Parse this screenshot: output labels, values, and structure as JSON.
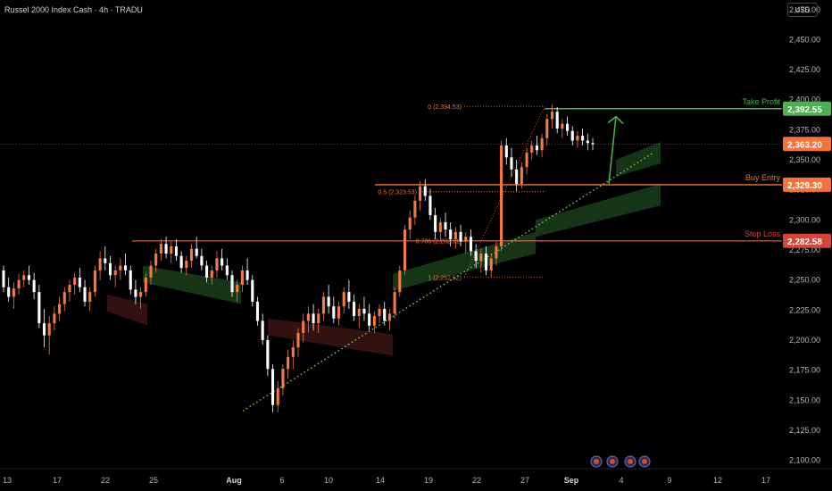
{
  "header": {
    "title": "Russel 2000 Index Cash · 4h · TRADU"
  },
  "currency_button": "USD",
  "colors": {
    "background": "#000000",
    "bull": "#f47b3f",
    "bear": "#ffffff",
    "take_profit": "#4caf50",
    "buy_entry": "#f0743b",
    "stop_loss": "#d5453a",
    "trendline": "#7fbf4f",
    "cloud_bull": "#1a3d1a",
    "cloud_bear": "#3b1414",
    "axis_text": "#b2b5be",
    "fib": "#f0743b"
  },
  "chart_data": {
    "type": "candlestick",
    "title": "Russel 2000 Index Cash · 4h · TRADU",
    "y_axis": {
      "ticks": [
        "2,475.00",
        "2,450.00",
        "2,425.00",
        "2,400.00",
        "2,375.00",
        "2,350.00",
        "2,325.00",
        "2,300.00",
        "2,275.00",
        "2,250.00",
        "2,225.00",
        "2,200.00",
        "2,175.00",
        "2,150.00",
        "2,125.00",
        "2,100.00"
      ],
      "tick_values": [
        2475,
        2450,
        2425,
        2400,
        2375,
        2350,
        2325,
        2300,
        2275,
        2250,
        2225,
        2200,
        2175,
        2150,
        2125,
        2100
      ],
      "range": [
        2093,
        2483
      ]
    },
    "x_axis": {
      "ticks": [
        "13",
        "17",
        "22",
        "25",
        "Aug",
        "6",
        "10",
        "14",
        "19",
        "22",
        "27",
        "Sep",
        "4",
        "9",
        "12",
        "17"
      ],
      "range_label_start": "Jul 13",
      "range_label_end": "Sep 17"
    },
    "key_levels": [
      {
        "name": "Take Profit",
        "value": 2392.55,
        "label": "2,392.55",
        "color": "#4caf50"
      },
      {
        "name": "Buy Entry",
        "value": 2329.3,
        "label": "2,329.30",
        "color": "#f0743b"
      },
      {
        "name": "Stop Loss",
        "value": 2282.58,
        "label": "2,282.58",
        "color": "#d5453a"
      }
    ],
    "current_price": {
      "value": 2363.2,
      "label": "2,363.20"
    },
    "fibonacci": [
      {
        "label": "0 (2,394.53)",
        "value": 2394.53
      },
      {
        "label": "0.5 (2,323.53)",
        "value": 2323.53
      },
      {
        "label": "0.786 (2,282.91)",
        "value": 2282.91
      },
      {
        "label": "1 (2,252.52)",
        "value": 2252.52
      }
    ],
    "trendline": {
      "from": {
        "date": "Aug 1",
        "value": 2141
      },
      "to": {
        "date": "Sep 5",
        "value": 2356
      }
    },
    "arrow": {
      "from": {
        "date": "Sep 2",
        "value": 2330
      },
      "to": {
        "date": "Sep 3",
        "value": 2386
      }
    },
    "candles": [
      [
        2258,
        2262,
        2240,
        2244
      ],
      [
        2244,
        2252,
        2232,
        2236
      ],
      [
        2236,
        2248,
        2226,
        2243
      ],
      [
        2243,
        2255,
        2238,
        2250
      ],
      [
        2250,
        2258,
        2244,
        2254
      ],
      [
        2254,
        2262,
        2246,
        2250
      ],
      [
        2250,
        2256,
        2234,
        2240
      ],
      [
        2240,
        2246,
        2210,
        2214
      ],
      [
        2214,
        2226,
        2194,
        2204
      ],
      [
        2204,
        2220,
        2188,
        2214
      ],
      [
        2214,
        2228,
        2208,
        2222
      ],
      [
        2222,
        2236,
        2216,
        2230
      ],
      [
        2230,
        2244,
        2224,
        2240
      ],
      [
        2240,
        2250,
        2232,
        2246
      ],
      [
        2246,
        2256,
        2238,
        2252
      ],
      [
        2252,
        2260,
        2240,
        2244
      ],
      [
        2244,
        2250,
        2228,
        2232
      ],
      [
        2232,
        2244,
        2224,
        2240
      ],
      [
        2240,
        2262,
        2236,
        2258
      ],
      [
        2258,
        2274,
        2250,
        2268
      ],
      [
        2268,
        2278,
        2258,
        2264
      ],
      [
        2264,
        2270,
        2250,
        2254
      ],
      [
        2254,
        2262,
        2244,
        2258
      ],
      [
        2258,
        2268,
        2250,
        2262
      ],
      [
        2262,
        2272,
        2254,
        2258
      ],
      [
        2258,
        2262,
        2238,
        2242
      ],
      [
        2242,
        2250,
        2230,
        2236
      ],
      [
        2236,
        2244,
        2226,
        2240
      ],
      [
        2240,
        2256,
        2236,
        2252
      ],
      [
        2252,
        2266,
        2246,
        2262
      ],
      [
        2262,
        2276,
        2256,
        2272
      ],
      [
        2272,
        2284,
        2266,
        2280
      ],
      [
        2280,
        2286,
        2268,
        2272
      ],
      [
        2272,
        2282,
        2264,
        2278
      ],
      [
        2278,
        2284,
        2266,
        2270
      ],
      [
        2270,
        2274,
        2256,
        2260
      ],
      [
        2260,
        2270,
        2254,
        2266
      ],
      [
        2266,
        2280,
        2260,
        2276
      ],
      [
        2276,
        2286,
        2268,
        2270
      ],
      [
        2270,
        2276,
        2258,
        2262
      ],
      [
        2262,
        2266,
        2248,
        2252
      ],
      [
        2252,
        2262,
        2246,
        2258
      ],
      [
        2258,
        2274,
        2252,
        2268
      ],
      [
        2268,
        2276,
        2258,
        2262
      ],
      [
        2262,
        2268,
        2250,
        2254
      ],
      [
        2254,
        2258,
        2236,
        2240
      ],
      [
        2240,
        2250,
        2232,
        2246
      ],
      [
        2246,
        2262,
        2240,
        2258
      ],
      [
        2258,
        2268,
        2246,
        2250
      ],
      [
        2250,
        2254,
        2228,
        2232
      ],
      [
        2232,
        2236,
        2212,
        2216
      ],
      [
        2216,
        2222,
        2196,
        2200
      ],
      [
        2200,
        2204,
        2170,
        2176
      ],
      [
        2176,
        2180,
        2140,
        2146
      ],
      [
        2146,
        2166,
        2140,
        2160
      ],
      [
        2160,
        2180,
        2154,
        2176
      ],
      [
        2176,
        2192,
        2168,
        2186
      ],
      [
        2186,
        2200,
        2176,
        2194
      ],
      [
        2194,
        2210,
        2186,
        2206
      ],
      [
        2206,
        2222,
        2198,
        2216
      ],
      [
        2216,
        2228,
        2206,
        2222
      ],
      [
        2222,
        2230,
        2208,
        2214
      ],
      [
        2214,
        2226,
        2206,
        2222
      ],
      [
        2222,
        2240,
        2216,
        2236
      ],
      [
        2236,
        2246,
        2222,
        2228
      ],
      [
        2228,
        2236,
        2214,
        2218
      ],
      [
        2218,
        2232,
        2212,
        2228
      ],
      [
        2228,
        2244,
        2222,
        2240
      ],
      [
        2240,
        2250,
        2226,
        2232
      ],
      [
        2232,
        2238,
        2216,
        2220
      ],
      [
        2220,
        2230,
        2210,
        2226
      ],
      [
        2226,
        2236,
        2216,
        2222
      ],
      [
        2222,
        2230,
        2208,
        2212
      ],
      [
        2212,
        2224,
        2206,
        2220
      ],
      [
        2220,
        2230,
        2214,
        2226
      ],
      [
        2226,
        2232,
        2212,
        2216
      ],
      [
        2216,
        2226,
        2208,
        2222
      ],
      [
        2222,
        2244,
        2218,
        2240
      ],
      [
        2240,
        2262,
        2236,
        2258
      ],
      [
        2258,
        2296,
        2254,
        2292
      ],
      [
        2292,
        2308,
        2284,
        2302
      ],
      [
        2302,
        2320,
        2296,
        2316
      ],
      [
        2316,
        2332,
        2308,
        2328
      ],
      [
        2328,
        2334,
        2316,
        2320
      ],
      [
        2320,
        2326,
        2300,
        2304
      ],
      [
        2304,
        2310,
        2284,
        2290
      ],
      [
        2290,
        2302,
        2282,
        2298
      ],
      [
        2298,
        2306,
        2286,
        2292
      ],
      [
        2292,
        2298,
        2278,
        2284
      ],
      [
        2284,
        2294,
        2276,
        2290
      ],
      [
        2290,
        2296,
        2278,
        2282
      ],
      [
        2282,
        2290,
        2272,
        2286
      ],
      [
        2286,
        2292,
        2270,
        2274
      ],
      [
        2274,
        2280,
        2260,
        2266
      ],
      [
        2266,
        2276,
        2256,
        2272
      ],
      [
        2272,
        2278,
        2254,
        2258
      ],
      [
        2258,
        2272,
        2252,
        2268
      ],
      [
        2268,
        2282,
        2262,
        2278
      ],
      [
        2278,
        2366,
        2274,
        2362
      ],
      [
        2362,
        2368,
        2346,
        2352
      ],
      [
        2352,
        2360,
        2336,
        2342
      ],
      [
        2342,
        2350,
        2324,
        2330
      ],
      [
        2330,
        2348,
        2326,
        2344
      ],
      [
        2344,
        2360,
        2338,
        2356
      ],
      [
        2356,
        2366,
        2350,
        2362
      ],
      [
        2362,
        2370,
        2354,
        2358
      ],
      [
        2358,
        2372,
        2352,
        2368
      ],
      [
        2368,
        2388,
        2362,
        2384
      ],
      [
        2384,
        2396,
        2376,
        2390
      ],
      [
        2390,
        2394,
        2372,
        2376
      ],
      [
        2376,
        2384,
        2368,
        2380
      ],
      [
        2380,
        2386,
        2370,
        2374
      ],
      [
        2374,
        2378,
        2362,
        2366
      ],
      [
        2366,
        2374,
        2360,
        2370
      ],
      [
        2370,
        2376,
        2362,
        2366
      ],
      [
        2366,
        2372,
        2358,
        2364
      ],
      [
        2364,
        2368,
        2358,
        2363
      ]
    ]
  }
}
